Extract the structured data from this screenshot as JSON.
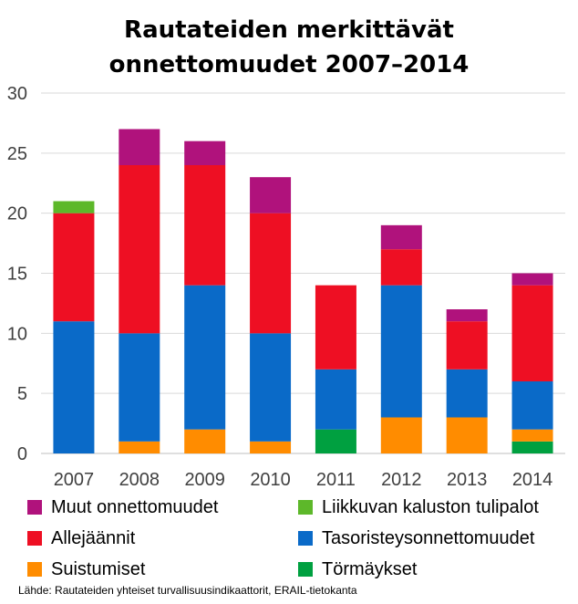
{
  "chart_data": {
    "type": "bar",
    "stacked": true,
    "title_lines": [
      "Rautateiden merkittävät",
      "onnettomuudet 2007–2014"
    ],
    "categories": [
      "2007",
      "2008",
      "2009",
      "2010",
      "2011",
      "2012",
      "2013",
      "2014"
    ],
    "ylim": [
      0,
      30
    ],
    "yticks": [
      0,
      5,
      10,
      15,
      20,
      25,
      30
    ],
    "grid": true,
    "legend_position": "bottom",
    "series": [
      {
        "name": "Törmäykset",
        "color": "#00A040",
        "values": [
          0,
          0,
          0,
          0,
          2,
          0,
          0,
          1
        ]
      },
      {
        "name": "Suistumiset",
        "color": "#FF8C00",
        "values": [
          0,
          1,
          2,
          1,
          0,
          3,
          3,
          1
        ]
      },
      {
        "name": "Tasoristeysonnettomuudet",
        "color": "#0A6AC8",
        "values": [
          11,
          9,
          12,
          9,
          5,
          11,
          4,
          4
        ]
      },
      {
        "name": "Allejäännit",
        "color": "#EE0F23",
        "values": [
          9,
          14,
          10,
          10,
          7,
          3,
          4,
          8
        ]
      },
      {
        "name": "Liikkuvan kaluston tulipalot",
        "color": "#5DB82A",
        "values": [
          1,
          0,
          0,
          0,
          0,
          0,
          0,
          0
        ]
      },
      {
        "name": "Muut onnettomuudet",
        "color": "#B0127C",
        "values": [
          0,
          3,
          2,
          3,
          0,
          2,
          1,
          1
        ]
      }
    ],
    "legend_order": [
      "Muut onnettomuudet",
      "Liikkuvan kaluston tulipalot",
      "Allejäännit",
      "Tasoristeysonnettomuudet",
      "Suistumiset",
      "Törmäykset"
    ]
  },
  "source_note": "Lähde: Rautateiden yhteiset turvallisuusindikaattorit, ERAIL-tietokanta"
}
